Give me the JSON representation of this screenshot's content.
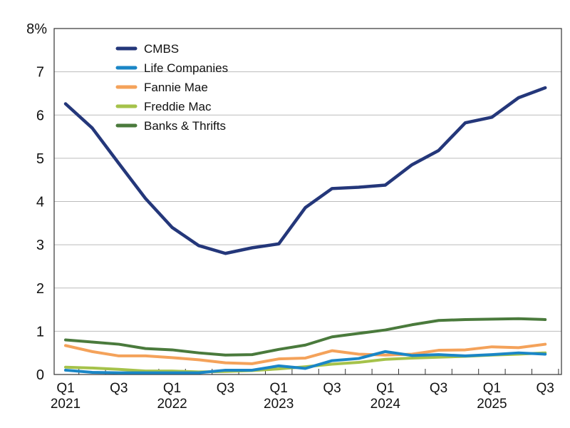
{
  "chart_data": {
    "type": "line",
    "title": "",
    "xlabel": "",
    "ylabel": "",
    "ylim": [
      0,
      8
    ],
    "y_ticks": [
      "0",
      "1",
      "2",
      "3",
      "4",
      "5",
      "6",
      "7",
      "8%"
    ],
    "x": [
      "Q1 2021",
      "Q2 2021",
      "Q3 2021",
      "Q4 2021",
      "Q1 2022",
      "Q2 2022",
      "Q3 2022",
      "Q4 2022",
      "Q1 2023",
      "Q2 2023",
      "Q3 2023",
      "Q4 2023",
      "Q1 2024",
      "Q2 2024",
      "Q3 2024",
      "Q4 2024",
      "Q1 2025",
      "Q2 2025",
      "Q3 2025"
    ],
    "x_tick_labels": [
      {
        "index": 0,
        "q": "Q1",
        "year": "2021"
      },
      {
        "index": 2,
        "q": "Q3",
        "year": ""
      },
      {
        "index": 4,
        "q": "Q1",
        "year": "2022"
      },
      {
        "index": 6,
        "q": "Q3",
        "year": ""
      },
      {
        "index": 8,
        "q": "Q1",
        "year": "2023"
      },
      {
        "index": 10,
        "q": "Q3",
        "year": ""
      },
      {
        "index": 12,
        "q": "Q1",
        "year": "2024"
      },
      {
        "index": 14,
        "q": "Q3",
        "year": ""
      },
      {
        "index": 16,
        "q": "Q1",
        "year": "2025"
      },
      {
        "index": 18,
        "q": "Q3",
        "year": ""
      }
    ],
    "grid": "horizontal",
    "legend_position": "top-left",
    "series": [
      {
        "name": "CMBS",
        "color": "#24377a",
        "values": [
          6.26,
          5.7,
          4.88,
          4.07,
          3.4,
          2.98,
          2.8,
          2.93,
          3.02,
          3.86,
          4.3,
          4.33,
          4.38,
          4.85,
          5.18,
          5.82,
          5.95,
          6.4,
          6.63
        ]
      },
      {
        "name": "Life Companies",
        "color": "#1a86c6",
        "values": [
          0.1,
          0.05,
          0.04,
          0.04,
          0.04,
          0.04,
          0.1,
          0.1,
          0.2,
          0.14,
          0.32,
          0.37,
          0.53,
          0.44,
          0.46,
          0.43,
          0.46,
          0.5,
          0.47
        ]
      },
      {
        "name": "Fannie Mae",
        "color": "#f4a25a",
        "values": [
          0.67,
          0.53,
          0.43,
          0.43,
          0.39,
          0.34,
          0.27,
          0.25,
          0.36,
          0.38,
          0.55,
          0.47,
          0.45,
          0.47,
          0.56,
          0.57,
          0.64,
          0.62,
          0.7
        ]
      },
      {
        "name": "Freddie Mac",
        "color": "#a5c24a",
        "values": [
          0.17,
          0.15,
          0.12,
          0.08,
          0.08,
          0.06,
          0.07,
          0.09,
          0.13,
          0.18,
          0.24,
          0.28,
          0.35,
          0.38,
          0.4,
          0.42,
          0.45,
          0.47,
          0.5
        ]
      },
      {
        "name": "Banks & Thrifts",
        "color": "#4a7a3c",
        "values": [
          0.8,
          0.75,
          0.7,
          0.6,
          0.57,
          0.5,
          0.45,
          0.46,
          0.58,
          0.68,
          0.87,
          0.95,
          1.03,
          1.15,
          1.25,
          1.27,
          1.28,
          1.29,
          1.27
        ]
      }
    ]
  }
}
